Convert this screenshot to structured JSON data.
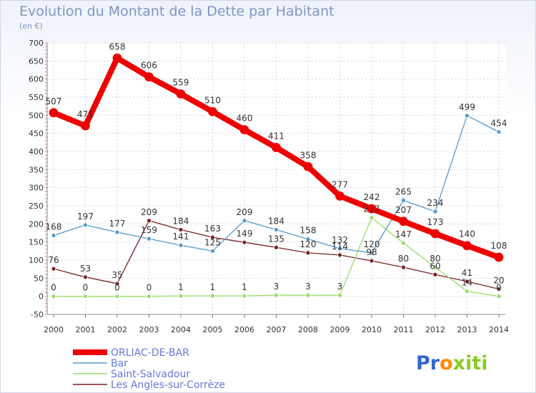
{
  "chart_data": {
    "type": "line",
    "title": "Evolution du Montant de la Dette par Habitant",
    "subtitle": "(en €)",
    "x": [
      "2000",
      "2001",
      "2002",
      "2003",
      "2004",
      "2005",
      "2006",
      "2007",
      "2008",
      "2009",
      "2010",
      "2011",
      "2012",
      "2013",
      "2014"
    ],
    "ylim": [
      -50,
      700
    ],
    "yticks": [
      -50,
      0,
      50,
      100,
      150,
      200,
      250,
      300,
      350,
      400,
      450,
      500,
      550,
      600,
      650,
      700
    ],
    "grid": true,
    "legend_position": "bottom-left",
    "series": [
      {
        "name": "ORLIAC-DE-BAR",
        "color": "#ee0000",
        "values": [
          507,
          471,
          658,
          606,
          559,
          510,
          460,
          411,
          358,
          277,
          242,
          207,
          173,
          140,
          108
        ]
      },
      {
        "name": "Bar",
        "color": "#5599cc",
        "values": [
          168,
          197,
          177,
          159,
          141,
          125,
          209,
          184,
          158,
          132,
          120,
          265,
          234,
          499,
          454
        ]
      },
      {
        "name": "Saint-Salvadour",
        "color": "#99dd66",
        "values": [
          0,
          0,
          0,
          0,
          1,
          1,
          1,
          3,
          3,
          3,
          217,
          147,
          80,
          14,
          0
        ]
      },
      {
        "name": "Les Angles-sur-Corrèze",
        "color": "#772222",
        "values": [
          76,
          53,
          35,
          209,
          184,
          163,
          149,
          135,
          120,
          114,
          98,
          80,
          60,
          41,
          20
        ]
      }
    ]
  },
  "brand": {
    "logo_parts": [
      "Pr",
      "o",
      "x",
      "iti"
    ],
    "colors": {
      "blue": "#3366cc",
      "orange": "#ff8800",
      "green": "#88cc22"
    }
  }
}
